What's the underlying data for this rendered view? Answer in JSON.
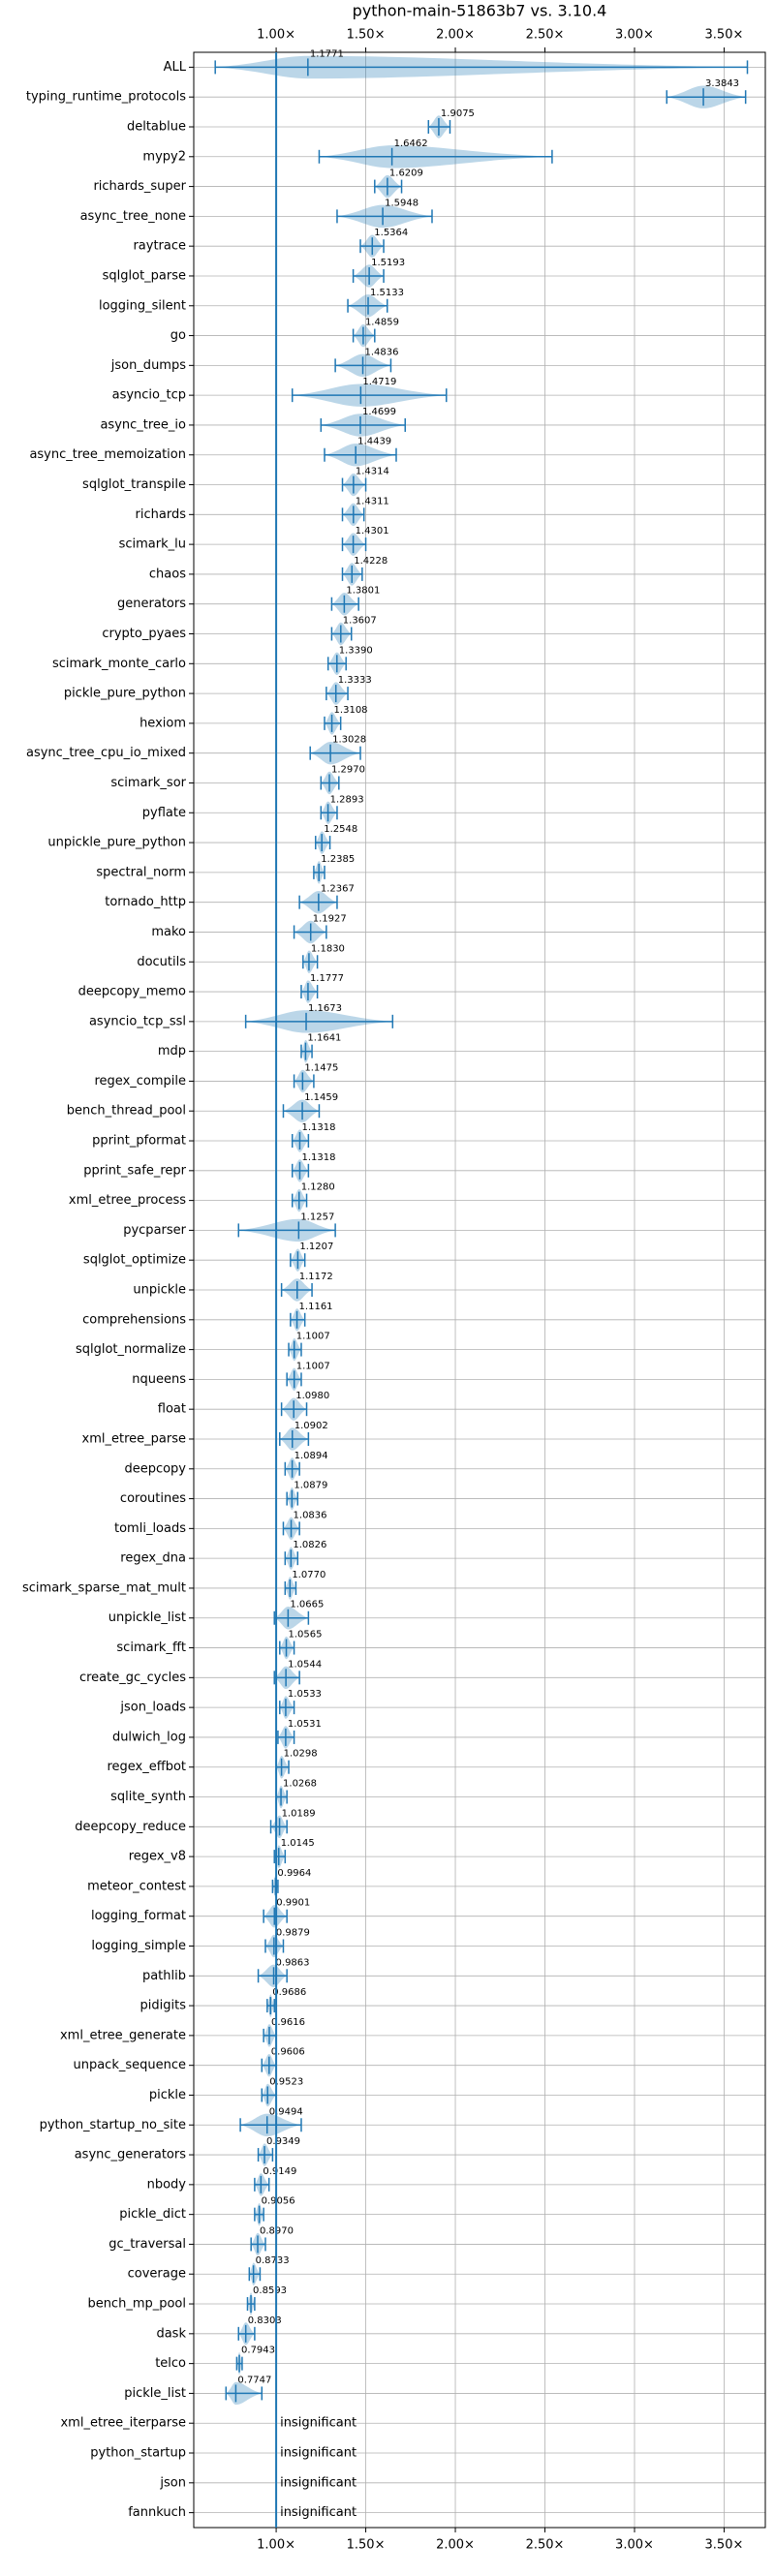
{
  "chart_data": {
    "type": "violin",
    "title": "python-main-51863b7 vs. 3.10.4",
    "categories": [
      "ALL",
      "typing_runtime_protocols",
      "deltablue",
      "mypy2",
      "richards_super",
      "async_tree_none",
      "raytrace",
      "sqlglot_parse",
      "logging_silent",
      "go",
      "json_dumps",
      "asyncio_tcp",
      "async_tree_io",
      "async_tree_memoization",
      "sqlglot_transpile",
      "richards",
      "scimark_lu",
      "chaos",
      "generators",
      "crypto_pyaes",
      "scimark_monte_carlo",
      "pickle_pure_python",
      "hexiom",
      "async_tree_cpu_io_mixed",
      "scimark_sor",
      "pyflate",
      "unpickle_pure_python",
      "spectral_norm",
      "tornado_http",
      "mako",
      "docutils",
      "deepcopy_memo",
      "asyncio_tcp_ssl",
      "mdp",
      "regex_compile",
      "bench_thread_pool",
      "pprint_pformat",
      "pprint_safe_repr",
      "xml_etree_process",
      "pycparser",
      "sqlglot_optimize",
      "unpickle",
      "comprehensions",
      "sqlglot_normalize",
      "nqueens",
      "float",
      "xml_etree_parse",
      "deepcopy",
      "coroutines",
      "tomli_loads",
      "regex_dna",
      "scimark_sparse_mat_mult",
      "unpickle_list",
      "scimark_fft",
      "create_gc_cycles",
      "json_loads",
      "dulwich_log",
      "regex_effbot",
      "sqlite_synth",
      "deepcopy_reduce",
      "regex_v8",
      "meteor_contest",
      "logging_format",
      "logging_simple",
      "pathlib",
      "pidigits",
      "xml_etree_generate",
      "unpack_sequence",
      "pickle",
      "python_startup_no_site",
      "async_generators",
      "nbody",
      "pickle_dict",
      "gc_traversal",
      "coverage",
      "bench_mp_pool",
      "dask",
      "telco",
      "pickle_list",
      "xml_etree_iterparse",
      "python_startup",
      "json",
      "fannkuch"
    ],
    "values": [
      1.1771,
      3.3843,
      1.9075,
      1.6462,
      1.6209,
      1.5948,
      1.5364,
      1.5193,
      1.5133,
      1.4859,
      1.4836,
      1.4719,
      1.4699,
      1.4439,
      1.4314,
      1.4311,
      1.4301,
      1.4228,
      1.3801,
      1.3607,
      1.339,
      1.3333,
      1.3108,
      1.3028,
      1.297,
      1.2893,
      1.2548,
      1.2385,
      1.2367,
      1.1927,
      1.183,
      1.1777,
      1.1673,
      1.1641,
      1.1475,
      1.1459,
      1.1318,
      1.1318,
      1.128,
      1.1257,
      1.1207,
      1.1172,
      1.1161,
      1.1007,
      1.1007,
      1.098,
      1.0902,
      1.0894,
      1.0879,
      1.0836,
      1.0826,
      1.077,
      1.0665,
      1.0565,
      1.0544,
      1.0533,
      1.0531,
      1.0298,
      1.0268,
      1.0189,
      1.0145,
      0.9964,
      0.9901,
      0.9879,
      0.9863,
      0.9686,
      0.9616,
      0.9606,
      0.9523,
      0.9494,
      0.9349,
      0.9149,
      0.9056,
      0.897,
      0.8733,
      0.8593,
      0.8303,
      0.7943,
      0.7747,
      null,
      null,
      null,
      null
    ],
    "value_labels": [
      "1.1771",
      "3.3843",
      "1.9075",
      "1.6462",
      "1.6209",
      "1.5948",
      "1.5364",
      "1.5193",
      "1.5133",
      "1.4859",
      "1.4836",
      "1.4719",
      "1.4699",
      "1.4439",
      "1.4314",
      "1.4311",
      "1.4301",
      "1.4228",
      "1.3801",
      "1.3607",
      "1.3390",
      "1.3333",
      "1.3108",
      "1.3028",
      "1.2970",
      "1.2893",
      "1.2548",
      "1.2385",
      "1.2367",
      "1.1927",
      "1.1830",
      "1.1777",
      "1.1673",
      "1.1641",
      "1.1475",
      "1.1459",
      "1.1318",
      "1.1318",
      "1.1280",
      "1.1257",
      "1.1207",
      "1.1172",
      "1.1161",
      "1.1007",
      "1.1007",
      "1.0980",
      "1.0902",
      "1.0894",
      "1.0879",
      "1.0836",
      "1.0826",
      "1.0770",
      "1.0665",
      "1.0565",
      "1.0544",
      "1.0533",
      "1.0531",
      "1.0298",
      "1.0268",
      "1.0189",
      "1.0145",
      "0.9964",
      "0.9901",
      "0.9879",
      "0.9863",
      "0.9686",
      "0.9616",
      "0.9606",
      "0.9523",
      "0.9494",
      "0.9349",
      "0.9149",
      "0.9056",
      "0.8970",
      "0.8733",
      "0.8593",
      "0.8303",
      "0.7943",
      "0.7747",
      "insignificant",
      "insignificant",
      "insignificant",
      "insignificant"
    ],
    "min": [
      0.66,
      3.18,
      1.85,
      1.24,
      1.55,
      1.34,
      1.47,
      1.43,
      1.4,
      1.43,
      1.33,
      1.09,
      1.25,
      1.27,
      1.37,
      1.37,
      1.37,
      1.37,
      1.31,
      1.31,
      1.29,
      1.28,
      1.27,
      1.19,
      1.25,
      1.25,
      1.22,
      1.21,
      1.13,
      1.1,
      1.15,
      1.14,
      0.83,
      1.14,
      1.1,
      1.04,
      1.09,
      1.09,
      1.09,
      0.79,
      1.08,
      1.03,
      1.08,
      1.07,
      1.06,
      1.03,
      1.02,
      1.05,
      1.06,
      1.04,
      1.05,
      1.05,
      0.99,
      1.02,
      0.99,
      1.02,
      1.01,
      1.0,
      1.0,
      0.97,
      0.99,
      0.98,
      0.93,
      0.94,
      0.9,
      0.95,
      0.93,
      0.92,
      0.92,
      0.8,
      0.9,
      0.88,
      0.88,
      0.86,
      0.85,
      0.84,
      0.79,
      0.78,
      0.72,
      null,
      null,
      null,
      null
    ],
    "max": [
      3.63,
      3.62,
      1.97,
      2.54,
      1.7,
      1.87,
      1.6,
      1.6,
      1.62,
      1.55,
      1.64,
      1.95,
      1.72,
      1.67,
      1.5,
      1.49,
      1.5,
      1.48,
      1.46,
      1.42,
      1.39,
      1.4,
      1.36,
      1.47,
      1.35,
      1.34,
      1.3,
      1.27,
      1.34,
      1.28,
      1.23,
      1.23,
      1.65,
      1.2,
      1.21,
      1.24,
      1.18,
      1.18,
      1.17,
      1.33,
      1.16,
      1.2,
      1.16,
      1.14,
      1.14,
      1.17,
      1.18,
      1.13,
      1.12,
      1.13,
      1.12,
      1.11,
      1.18,
      1.1,
      1.13,
      1.1,
      1.1,
      1.07,
      1.06,
      1.06,
      1.05,
      1.01,
      1.06,
      1.04,
      1.06,
      0.99,
      1.0,
      1.0,
      1.0,
      1.14,
      0.98,
      0.96,
      0.93,
      0.94,
      0.91,
      0.88,
      0.88,
      0.81,
      0.92,
      null,
      null,
      null,
      null
    ],
    "color": "#1f77b4",
    "reference_line": 1,
    "xlim": [
      0.54,
      3.73
    ],
    "xticks": [
      {
        "value": 1,
        "label": "1.00×"
      },
      {
        "value": 1.5,
        "label": "1.50×"
      },
      {
        "value": 2,
        "label": "2.00×"
      },
      {
        "value": 2.5,
        "label": "2.50×"
      },
      {
        "value": 3,
        "label": "3.00×"
      },
      {
        "value": 3.5,
        "label": "3.50×"
      }
    ],
    "grid": true
  }
}
